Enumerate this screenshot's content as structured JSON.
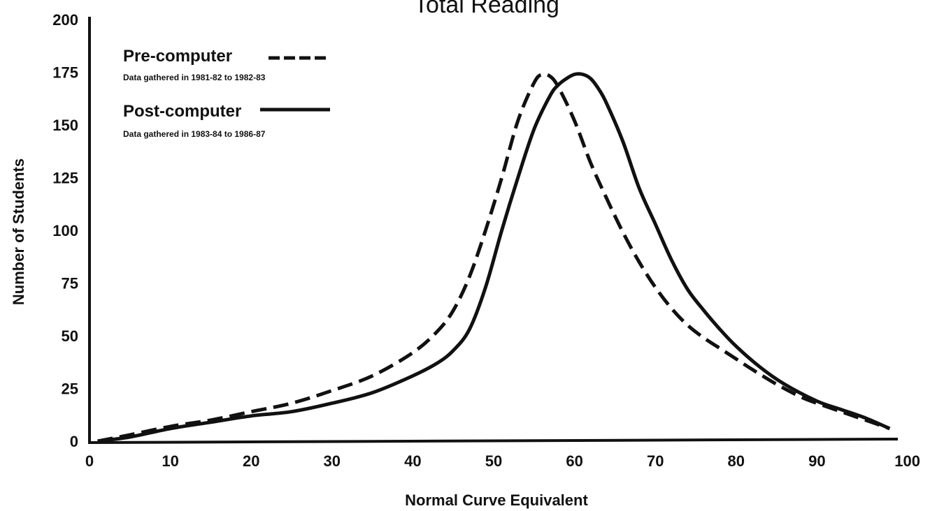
{
  "chart_data": {
    "type": "line",
    "title": "Total Reading",
    "xlabel": "Normal Curve Equivalent",
    "ylabel": "Number of Students",
    "xlim": [
      0,
      100
    ],
    "ylim": [
      0,
      200
    ],
    "x_ticks": [
      0,
      10,
      20,
      30,
      40,
      50,
      60,
      70,
      80,
      90,
      100
    ],
    "y_ticks": [
      0,
      25,
      50,
      75,
      100,
      125,
      150,
      175,
      200
    ],
    "grid": false,
    "legend_placement": "top-left",
    "series": [
      {
        "name": "Pre-computer",
        "note": "Data gathered in 1981-82 to 1982-83",
        "style": "dashed",
        "color": "#111111",
        "x": [
          1,
          5,
          10,
          15,
          20,
          25,
          30,
          35,
          40,
          43,
          45,
          47,
          49,
          51,
          53,
          55,
          56,
          57,
          58,
          60,
          62,
          64,
          66,
          68,
          70,
          72,
          74,
          76,
          78,
          80,
          82,
          85,
          88,
          90,
          93,
          96,
          99
        ],
        "values": [
          0,
          3,
          7,
          10,
          14,
          18,
          24,
          31,
          42,
          52,
          62,
          78,
          100,
          125,
          152,
          170,
          174,
          173,
          168,
          152,
          132,
          115,
          99,
          85,
          73,
          63,
          55,
          49,
          44,
          39,
          34,
          27,
          21,
          18,
          14,
          10,
          6
        ]
      },
      {
        "name": "Post-computer",
        "note": "Data gathered in 1983-84 to 1986-87",
        "style": "solid",
        "color": "#111111",
        "x": [
          1,
          5,
          10,
          15,
          20,
          25,
          30,
          35,
          40,
          43,
          45,
          47,
          49,
          51,
          53,
          55,
          57,
          58,
          59,
          60,
          61,
          62,
          63,
          64,
          66,
          68,
          70,
          72,
          74,
          76,
          78,
          80,
          83,
          86,
          90,
          93,
          96,
          99
        ],
        "values": [
          0,
          2,
          6,
          9,
          12,
          14,
          18,
          23,
          31,
          37,
          43,
          53,
          73,
          100,
          125,
          148,
          164,
          169,
          172,
          174,
          174,
          172,
          167,
          160,
          142,
          120,
          103,
          86,
          72,
          62,
          53,
          45,
          35,
          27,
          19,
          15,
          11,
          6
        ]
      }
    ]
  }
}
